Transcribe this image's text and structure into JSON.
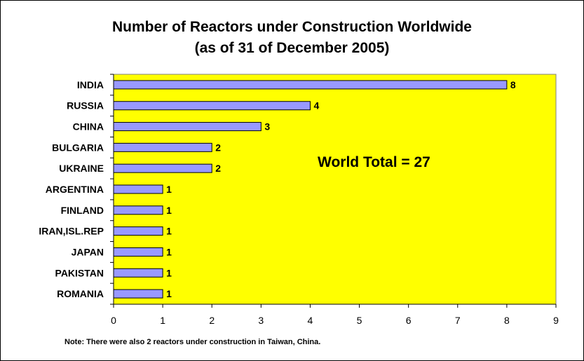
{
  "chart_data": {
    "type": "bar",
    "orientation": "horizontal",
    "title": "Number of Reactors under Construction Worldwide",
    "subtitle": "(as of 31 of December 2005)",
    "categories": [
      "INDIA",
      "RUSSIA",
      "CHINA",
      "BULGARIA",
      "UKRAINE",
      "ARGENTINA",
      "FINLAND",
      "IRAN,ISL.REP",
      "JAPAN",
      "PAKISTAN",
      "ROMANIA"
    ],
    "values": [
      8,
      4,
      3,
      2,
      2,
      1,
      1,
      1,
      1,
      1,
      1
    ],
    "xlim": [
      0,
      9
    ],
    "xticks": [
      "0",
      "1",
      "2",
      "3",
      "4",
      "5",
      "6",
      "7",
      "8",
      "9"
    ],
    "annotation": "World Total = 27",
    "note": "Note: There were also 2 reactors under construction in Taiwan, China.",
    "grid": false,
    "data_labels": true
  },
  "colors": {
    "plot_background": "#ffff00",
    "bar_fill": "#9999ff",
    "bar_stroke": "#000000"
  }
}
